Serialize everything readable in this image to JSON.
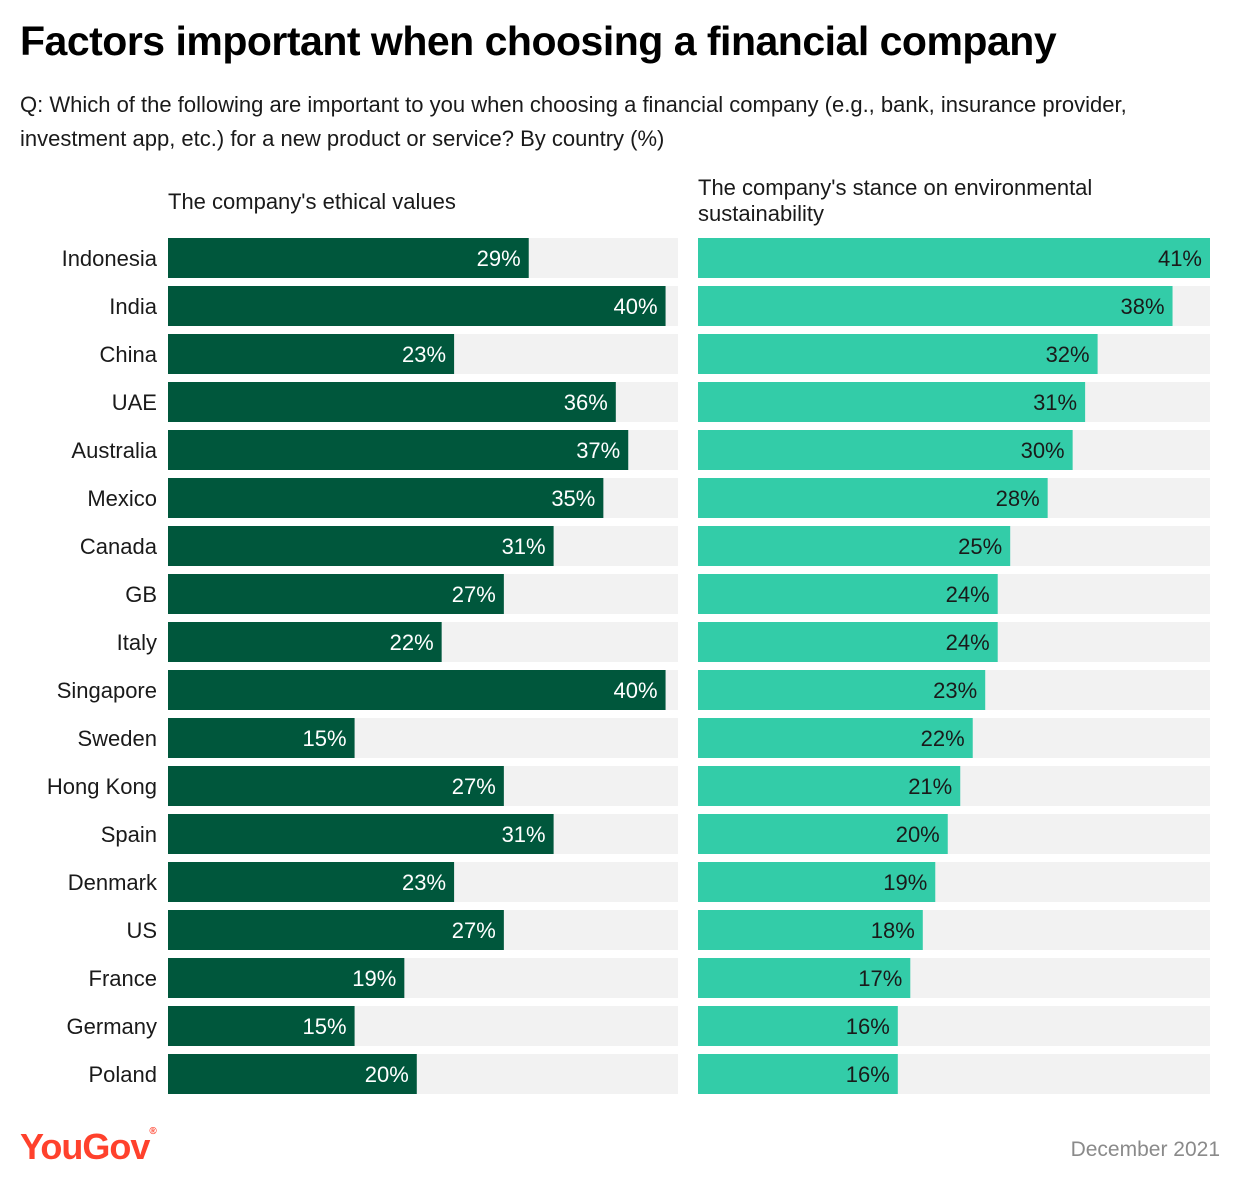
{
  "header": {
    "title": "Factors important when choosing a financial company",
    "subtitle": "Q: Which of the following are important to you when choosing a financial company (e.g., bank, insurance provider, investment app, etc.) for a new product or service? By country (%)"
  },
  "footer": {
    "logo_text": "YouGov",
    "date": "December 2021"
  },
  "colors": {
    "ethical": "#00573c",
    "environment": "#33cca8",
    "track": "#f2f2f2",
    "label_on_dark": "#ffffff",
    "label_on_light": "#1a1a1a"
  },
  "chart_data": {
    "type": "bar",
    "orientation": "horizontal",
    "categories": [
      "Indonesia",
      "India",
      "China",
      "UAE",
      "Australia",
      "Mexico",
      "Canada",
      "GB",
      "Italy",
      "Singapore",
      "Sweden",
      "Hong Kong",
      "Spain",
      "Denmark",
      "US",
      "France",
      "Germany",
      "Poland"
    ],
    "series": [
      {
        "name": "The company's ethical values",
        "values": [
          29,
          40,
          23,
          36,
          37,
          35,
          31,
          27,
          22,
          40,
          15,
          27,
          31,
          23,
          27,
          19,
          15,
          20
        ]
      },
      {
        "name": "The company's stance on environmental sustainability",
        "values": [
          41,
          38,
          32,
          31,
          30,
          28,
          25,
          24,
          24,
          23,
          22,
          21,
          20,
          19,
          18,
          17,
          16,
          16
        ]
      }
    ],
    "value_suffix": "%",
    "xlim": [
      0,
      41
    ],
    "grid": false,
    "legend": "panel titles"
  }
}
